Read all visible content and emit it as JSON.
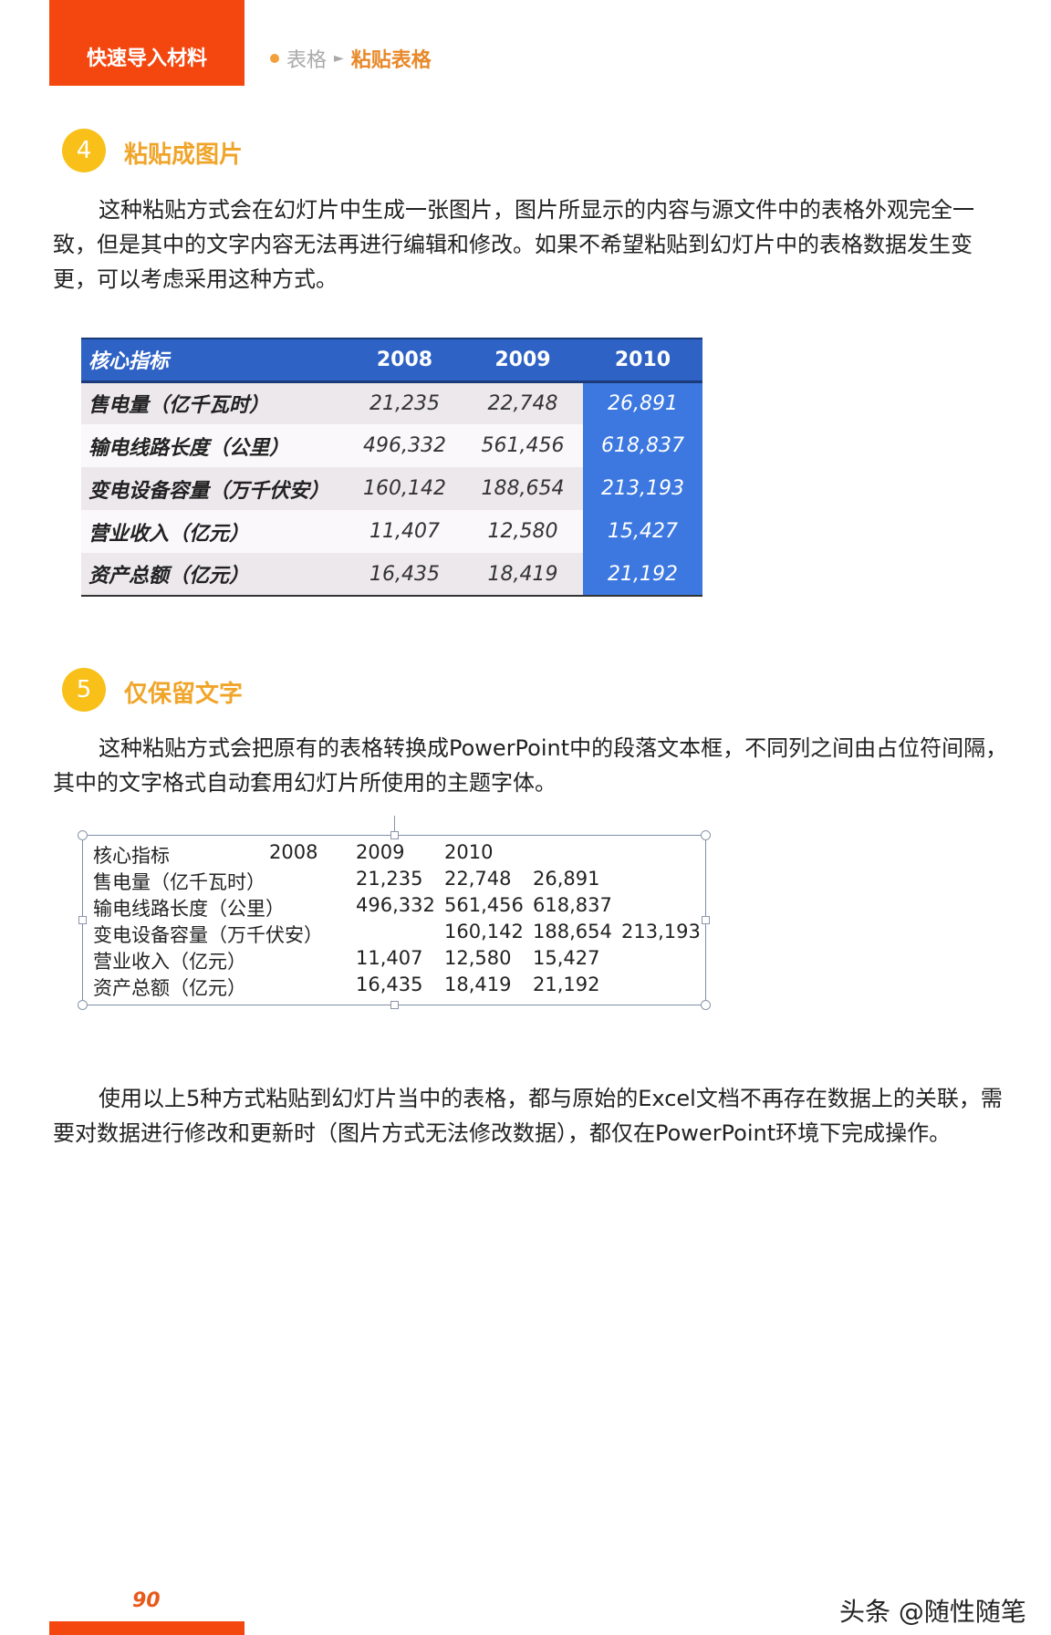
{
  "header": {
    "chapter": "快速导入材料",
    "crumb_parent": "表格",
    "crumb_arrow": "►",
    "crumb_current": "粘贴表格"
  },
  "section4": {
    "number": "4",
    "title": "粘贴成图片",
    "paragraph": "这种粘贴方式会在幻灯片中生成一张图片，图片所显示的内容与源文件中的表格外观完全一致，但是其中的文字内容无法再进行编辑和修改。如果不希望粘贴到幻灯片中的表格数据发生变更，可以考虑采用这种方式。"
  },
  "table": {
    "headers": [
      "核心指标",
      "2008",
      "2009",
      "2010"
    ],
    "rows": [
      [
        "售电量（亿千瓦时）",
        "21,235",
        "22,748",
        "26,891"
      ],
      [
        "输电线路长度（公里）",
        "496,332",
        "561,456",
        "618,837"
      ],
      [
        "变电设备容量（万千伏安）",
        "160,142",
        "188,654",
        "213,193"
      ],
      [
        "营业收入（亿元）",
        "11,407",
        "12,580",
        "15,427"
      ],
      [
        "资产总额（亿元）",
        "16,435",
        "18,419",
        "21,192"
      ]
    ],
    "colors": {
      "header": "#2e62c4",
      "highlight": "#3c78e0"
    }
  },
  "section5": {
    "number": "5",
    "title": "仅保留文字",
    "paragraph": "这种粘贴方式会把原有的表格转换成PowerPoint中的段落文本框，不同列之间由占位符间隔，其中的文字格式自动套用幻灯片所使用的主题字体。"
  },
  "textbox": {
    "lines": [
      [
        "核心指标",
        "2008",
        "2009",
        "2010"
      ],
      [
        "售电量（亿千瓦时）",
        "21,235",
        "22,748",
        "26,891"
      ],
      [
        "输电线路长度（公里）",
        "496,332",
        "561,456",
        "618,837"
      ],
      [
        "变电设备容量（万千伏安）",
        "160,142",
        "188,654",
        "213,193"
      ],
      [
        "营业收入（亿元）",
        "11,407",
        "12,580",
        "15,427"
      ],
      [
        "资产总额（亿元）",
        "16,435",
        "18,419",
        "21,192"
      ]
    ]
  },
  "summary": "使用以上5种方式粘贴到幻灯片当中的表格，都与原始的Excel文档不再存在数据上的关联，需要对数据进行修改和更新时（图片方式无法修改数据），都仅在PowerPoint环境下完成操作。",
  "footer": {
    "page_number": "90",
    "watermark": "头条 @随性随笔"
  },
  "colors": {
    "accent_orange": "#f4470f",
    "section_yellow": "#f8c019"
  }
}
